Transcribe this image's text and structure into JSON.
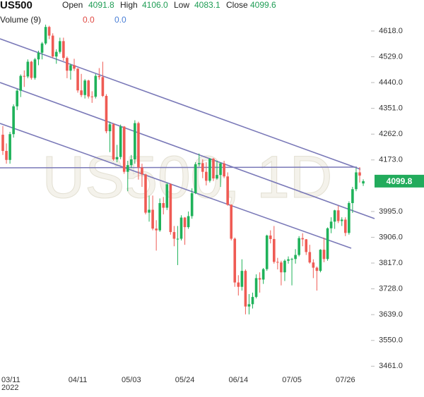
{
  "header": {
    "symbol": "US500",
    "ohlc": [
      {
        "label": "Open",
        "value": "4091.8"
      },
      {
        "label": "High",
        "value": "4106.0"
      },
      {
        "label": "Low",
        "value": "4083.1"
      },
      {
        "label": "Close",
        "value": "4099.6"
      }
    ],
    "volume": {
      "label": "Volume (9)",
      "values": [
        "0.0",
        "0.0"
      ]
    },
    "watermark": "US500, 1D"
  },
  "chart_data": {
    "type": "candlestick",
    "up_color": "#1fb25a",
    "down_color": "#ef5b54",
    "year_label": "2022",
    "categories": [
      "03/11",
      null,
      null,
      null,
      null,
      null,
      null,
      null,
      null,
      null,
      null,
      null,
      null,
      null,
      null,
      null,
      null,
      null,
      null,
      null,
      null,
      "04/11",
      null,
      null,
      null,
      null,
      null,
      null,
      null,
      null,
      null,
      null,
      null,
      null,
      null,
      null,
      "05/03",
      null,
      null,
      null,
      null,
      null,
      null,
      null,
      null,
      null,
      null,
      null,
      null,
      null,
      null,
      "05/24",
      null,
      null,
      null,
      null,
      null,
      null,
      null,
      null,
      null,
      null,
      null,
      null,
      null,
      null,
      "06/14",
      null,
      null,
      null,
      null,
      null,
      null,
      null,
      null,
      null,
      null,
      null,
      null,
      null,
      null,
      "07/05",
      null,
      null,
      null,
      null,
      null,
      null,
      null,
      null,
      null,
      null,
      null,
      null,
      null,
      null,
      "07/26",
      null,
      null,
      null,
      null,
      null
    ],
    "open": [
      4260,
      4204,
      4173,
      4262,
      4358,
      4412,
      4463,
      4461,
      4512,
      4456,
      4520,
      4543,
      4575,
      4632,
      4602,
      4530,
      4546,
      4583,
      4525,
      4481,
      4500,
      4488,
      4413,
      4397,
      4447,
      4392,
      4391,
      4463,
      4459,
      4394,
      4272,
      4296,
      4175,
      4183,
      4288,
      4132,
      4155,
      4175,
      4300,
      4147,
      4123,
      3991,
      4001,
      3936,
      3930,
      4024,
      4008,
      4089,
      3924,
      3901,
      3901,
      3974,
      3941,
      3979,
      4058,
      4158,
      4162,
      4132,
      4101,
      4177,
      4109,
      4121,
      4161,
      4116,
      4018,
      3901,
      3750,
      3735,
      3790,
      3667,
      3675,
      3700,
      3765,
      3760,
      3796,
      3912,
      3900,
      3821,
      3819,
      3785,
      3825,
      3830,
      3831,
      3845,
      3903,
      3899,
      3855,
      3819,
      3801,
      3790,
      3863,
      3831,
      3937,
      3960,
      3999,
      3962,
      3967,
      3921,
      4024,
      4072,
      4130,
      4091.8
    ],
    "high": [
      4290,
      4230,
      4270,
      4365,
      4418,
      4468,
      4482,
      4520,
      4515,
      4525,
      4550,
      4580,
      4640,
      4636,
      4610,
      4555,
      4595,
      4595,
      4530,
      4505,
      4522,
      4490,
      4470,
      4452,
      4450,
      4410,
      4470,
      4490,
      4512,
      4400,
      4305,
      4300,
      4225,
      4295,
      4290,
      4170,
      4190,
      4310,
      4305,
      4160,
      4125,
      4050,
      4050,
      3965,
      4040,
      4045,
      4095,
      4092,
      3945,
      3945,
      3982,
      3976,
      3995,
      4075,
      4165,
      4195,
      4175,
      4165,
      4180,
      4180,
      4170,
      4165,
      4170,
      4130,
      4020,
      3905,
      3775,
      3830,
      3795,
      3710,
      3715,
      3778,
      3785,
      3800,
      3915,
      3930,
      3945,
      3835,
      3825,
      3830,
      3840,
      3835,
      3865,
      3910,
      3920,
      3900,
      3880,
      3830,
      3805,
      3865,
      3905,
      3940,
      3975,
      4001,
      4015,
      3975,
      3975,
      4030,
      4080,
      4145,
      4148,
      4106
    ],
    "low": [
      4190,
      4160,
      4160,
      4250,
      4345,
      4390,
      4425,
      4455,
      4450,
      4450,
      4500,
      4520,
      4570,
      4590,
      4525,
      4505,
      4540,
      4515,
      4455,
      4450,
      4480,
      4405,
      4390,
      4385,
      4385,
      4370,
      4385,
      4450,
      4390,
      4265,
      4200,
      4170,
      4165,
      4175,
      4125,
      4065,
      4145,
      4160,
      4105,
      4080,
      3985,
      3960,
      3930,
      3860,
      3925,
      3985,
      4000,
      3915,
      3875,
      3810,
      3895,
      3880,
      3935,
      3970,
      4055,
      4150,
      4110,
      4085,
      4095,
      4100,
      4105,
      4080,
      4110,
      4015,
      3895,
      3735,
      3705,
      3722,
      3640,
      3640,
      3660,
      3695,
      3715,
      3745,
      3790,
      3885,
      3815,
      3795,
      3740,
      3755,
      3815,
      3740,
      3815,
      3840,
      3875,
      3845,
      3815,
      3765,
      3722,
      3785,
      3820,
      3825,
      3920,
      3935,
      3955,
      3945,
      3910,
      3915,
      3990,
      4065,
      4095,
      4083.1
    ],
    "close": [
      4204,
      4173,
      4262,
      4358,
      4412,
      4463,
      4461,
      4512,
      4456,
      4520,
      4543,
      4575,
      4632,
      4602,
      4530,
      4546,
      4583,
      4525,
      4481,
      4500,
      4488,
      4413,
      4397,
      4447,
      4392,
      4391,
      4463,
      4459,
      4394,
      4272,
      4296,
      4175,
      4183,
      4288,
      4132,
      4155,
      4175,
      4300,
      4147,
      4123,
      3991,
      4001,
      3936,
      3930,
      4024,
      4008,
      4089,
      3924,
      3901,
      3901,
      3974,
      3941,
      3979,
      4058,
      4158,
      4162,
      4132,
      4101,
      4177,
      4109,
      4121,
      4161,
      4116,
      4018,
      3901,
      3750,
      3735,
      3790,
      3667,
      3675,
      3700,
      3765,
      3760,
      3796,
      3912,
      3900,
      3821,
      3819,
      3785,
      3825,
      3830,
      3831,
      3845,
      3903,
      3899,
      3855,
      3819,
      3801,
      3790,
      3863,
      3831,
      3937,
      3960,
      3999,
      3962,
      3967,
      3921,
      4024,
      4072,
      4130,
      4119,
      4099.6
    ],
    "last_price": 4099.8,
    "last_price_color": "#22ab5c",
    "ylim": [
      3435,
      4725
    ],
    "yticks": [
      {
        "value": 4618,
        "label": "4618.0"
      },
      {
        "value": 4529,
        "label": "4529.0"
      },
      {
        "value": 4440,
        "label": "4440.0"
      },
      {
        "value": 4351,
        "label": "4351.0"
      },
      {
        "value": 4262,
        "label": "4262.0"
      },
      {
        "value": 4173,
        "label": "4173.0"
      },
      {
        "value": 3995,
        "label": "3995.0"
      },
      {
        "value": 3906,
        "label": "3906.0"
      },
      {
        "value": 3817,
        "label": "3817.0"
      },
      {
        "value": 3728,
        "label": "3728.0"
      },
      {
        "value": 3639,
        "label": "3639.0"
      },
      {
        "value": 3550,
        "label": "3550.0"
      },
      {
        "value": 3461,
        "label": "3461.0"
      }
    ]
  }
}
